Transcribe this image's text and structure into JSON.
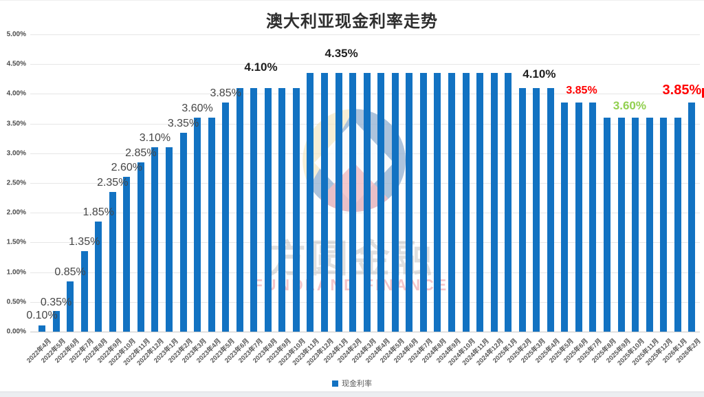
{
  "page": {
    "title": "澳大利亚现金利率走势"
  },
  "legend": {
    "label": "现金利率",
    "swatch_color": "#1272C2"
  },
  "watermark": {
    "cn_text": "方圆金融",
    "en_text": "FUNDLAND FINANCE"
  },
  "colors": {
    "bar": "#1272C2",
    "annotation_red": "#FF0000",
    "annotation_green": "#92D050",
    "annotation_dark": "#1f1f1f",
    "annotation_gray": "#454545",
    "axis_text": "#595959"
  },
  "chart_data": {
    "type": "bar",
    "title": "澳大利亚现金利率走势",
    "xlabel": "",
    "ylabel": "",
    "ylim": [
      0,
      5
    ],
    "grid": true,
    "legend_position": "bottom",
    "series_name": "现金利率",
    "y_ticks": [
      "0.00%",
      "0.50%",
      "1.00%",
      "1.50%",
      "2.00%",
      "2.50%",
      "3.00%",
      "3.50%",
      "4.00%",
      "4.50%",
      "5.00%"
    ],
    "categories": [
      "2022年4月",
      "2022年5月",
      "2022年6月",
      "2022年7月",
      "2022年8月",
      "2022年9月",
      "2022年10月",
      "2022年11月",
      "2022年12月",
      "2023年1月",
      "2023年2月",
      "2023年3月",
      "2023年4月",
      "2023年5月",
      "2023年6月",
      "2023年7月",
      "2023年8月",
      "2023年9月",
      "2023年10月",
      "2023年11月",
      "2023年12月",
      "2024年1月",
      "2024年2月",
      "2024年3月",
      "2024年4月",
      "2024年5月",
      "2024年6月",
      "2024年7月",
      "2024年8月",
      "2024年9月",
      "2024年10月",
      "2024年11月",
      "2024年12月",
      "2025年1月",
      "2025年2月",
      "2025年3月",
      "2025年4月",
      "2025年5月",
      "2025年6月",
      "2025年7月",
      "2025年8月",
      "2025年9月",
      "2025年10月",
      "2025年11月",
      "2025年12月",
      "2026年1月",
      "2026年2月"
    ],
    "values": [
      0.1,
      0.35,
      0.85,
      1.35,
      1.85,
      2.35,
      2.6,
      2.85,
      3.1,
      3.1,
      3.35,
      3.6,
      3.6,
      3.85,
      4.1,
      4.1,
      4.1,
      4.1,
      4.1,
      4.35,
      4.35,
      4.35,
      4.35,
      4.35,
      4.35,
      4.35,
      4.35,
      4.35,
      4.35,
      4.35,
      4.35,
      4.35,
      4.35,
      4.35,
      4.1,
      4.1,
      4.1,
      3.85,
      3.85,
      3.85,
      3.6,
      3.6,
      3.6,
      3.6,
      3.6,
      3.6,
      3.85
    ],
    "annotations": [
      {
        "text": "0.10%",
        "value": 0.1,
        "index": 0,
        "gap": 5,
        "style": "step"
      },
      {
        "text": "0.35%",
        "value": 0.35,
        "index": 1,
        "gap": 3,
        "style": "step"
      },
      {
        "text": "0.85%",
        "value": 0.85,
        "index": 2,
        "gap": 4,
        "style": "step"
      },
      {
        "text": "1.35%",
        "value": 1.35,
        "index": 3,
        "gap": 4,
        "style": "step"
      },
      {
        "text": "1.85%",
        "value": 1.85,
        "index": 4,
        "gap": 4,
        "style": "step"
      },
      {
        "text": "2.35%",
        "value": 2.35,
        "index": 5,
        "gap": 4,
        "style": "step"
      },
      {
        "text": "2.60%",
        "value": 2.6,
        "index": 6,
        "gap": 4,
        "style": "step"
      },
      {
        "text": "2.85%",
        "value": 2.85,
        "index": 7,
        "gap": 4,
        "style": "step"
      },
      {
        "text": "3.10%",
        "value": 3.1,
        "index": 8,
        "gap": 4,
        "style": "step"
      },
      {
        "text": "3.35%",
        "value": 3.35,
        "index": 10,
        "gap": 4,
        "style": "step"
      },
      {
        "text": "3.60%",
        "value": 3.6,
        "index": 11,
        "gap": 4,
        "style": "step"
      },
      {
        "text": "3.85%",
        "value": 3.85,
        "index": 13,
        "gap": 4,
        "style": "step"
      },
      {
        "text": "4.10%",
        "value": 4.1,
        "index": 15.5,
        "gap": 20,
        "style": "bold"
      },
      {
        "text": "4.35%",
        "value": 4.35,
        "index": 21.2,
        "gap": 18,
        "style": "bold"
      },
      {
        "text": "4.10%",
        "value": 4.1,
        "index": 35.2,
        "gap": 10,
        "style": "bold"
      },
      {
        "text": "3.85%",
        "value": 3.85,
        "index": 38.2,
        "gap": 8,
        "style": "red"
      },
      {
        "text": "3.60%",
        "value": 3.6,
        "index": 41.6,
        "gap": 7,
        "style": "green"
      },
      {
        "text": "3.85%",
        "value": 3.85,
        "index": 45.3,
        "gap": 6,
        "style": "red-big"
      }
    ]
  }
}
